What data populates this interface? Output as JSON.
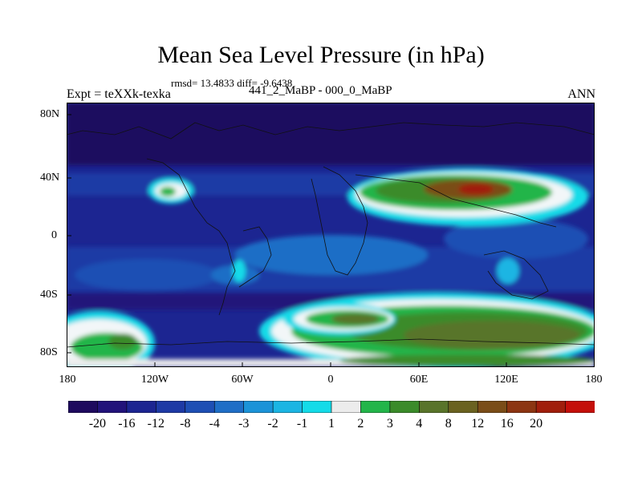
{
  "header": {
    "title": "Mean Sea Level Pressure (in hPa)",
    "stats": "rmsd= 13.4833 diff= -9.6438",
    "experiment": "Expt = teXXk-texka",
    "difference_label": "441_2_MaBP - 000_0_MaBP",
    "season": "ANN"
  },
  "axes": {
    "y_ticks": [
      "80N",
      "40N",
      "0",
      "40S",
      "80S"
    ],
    "x_ticks": [
      "180",
      "120W",
      "60W",
      "0",
      "60E",
      "120E",
      "180"
    ]
  },
  "colorbar": {
    "colors": [
      "#1e0a5e",
      "#22137a",
      "#1c2591",
      "#1e3aa5",
      "#1e4fb4",
      "#1f6ec6",
      "#1b93d8",
      "#1bb5e3",
      "#14dbe8",
      "#ececec",
      "#23b54a",
      "#3b8b2a",
      "#59742a",
      "#6a6220",
      "#7a4d18",
      "#8c3512",
      "#a01e0c",
      "#c40f0a"
    ],
    "labels": [
      "-20",
      "-16",
      "-12",
      "-8",
      "-4",
      "-3",
      "-2",
      "-1",
      "1",
      "2",
      "3",
      "4",
      "8",
      "12",
      "16",
      "20"
    ]
  },
  "map_colors": {
    "deep_navy": "#1e0a5e",
    "navy": "#1c2591",
    "mid_blue": "#1e3aa5",
    "blue": "#1f6ec6",
    "light_blue": "#1b93d8",
    "cyan": "#14dbe8",
    "white": "#f2f6f8",
    "green": "#23b54a",
    "olive": "#59742a",
    "brown": "#7a4d18",
    "red": "#a01e0c"
  }
}
